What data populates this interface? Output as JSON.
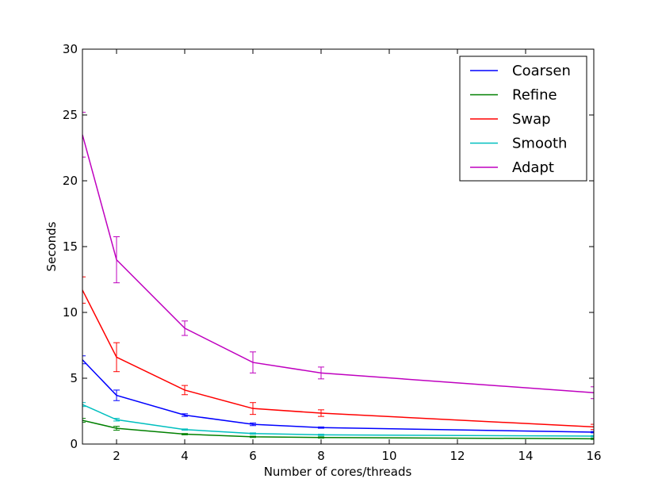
{
  "chart_data": {
    "type": "line",
    "xlabel": "Number of cores/threads",
    "ylabel": "Seconds",
    "xlim": [
      1,
      16
    ],
    "ylim": [
      0,
      30
    ],
    "x_ticks": [
      2,
      4,
      6,
      8,
      10,
      12,
      14,
      16
    ],
    "y_ticks": [
      0,
      5,
      10,
      15,
      20,
      25,
      30
    ],
    "grid": false,
    "legend_position": "top-right",
    "x": [
      1,
      2,
      4,
      6,
      8,
      16
    ],
    "series": [
      {
        "name": "Coarsen",
        "color": "#0000ff",
        "values": [
          6.4,
          3.7,
          2.2,
          1.5,
          1.25,
          0.9
        ],
        "errors": [
          0.3,
          0.4,
          0.1,
          0.1,
          0.05,
          0.05
        ]
      },
      {
        "name": "Refine",
        "color": "#008000",
        "values": [
          1.8,
          1.2,
          0.75,
          0.55,
          0.5,
          0.4
        ],
        "errors": [
          0.15,
          0.15,
          0.05,
          0.05,
          0.05,
          0.05
        ]
      },
      {
        "name": "Swap",
        "color": "#ff0000",
        "values": [
          11.7,
          6.6,
          4.1,
          2.7,
          2.35,
          1.3
        ],
        "errors": [
          1.0,
          1.1,
          0.35,
          0.45,
          0.25,
          0.2
        ]
      },
      {
        "name": "Smooth",
        "color": "#00bfbf",
        "values": [
          3.0,
          1.85,
          1.1,
          0.8,
          0.7,
          0.6
        ],
        "errors": [
          0.15,
          0.1,
          0.05,
          0.05,
          0.05,
          0.05
        ]
      },
      {
        "name": "Adapt",
        "color": "#bf00bf",
        "values": [
          23.5,
          14.0,
          8.8,
          6.2,
          5.4,
          3.9
        ],
        "errors": [
          1.7,
          1.75,
          0.55,
          0.8,
          0.45,
          0.45
        ]
      }
    ]
  }
}
